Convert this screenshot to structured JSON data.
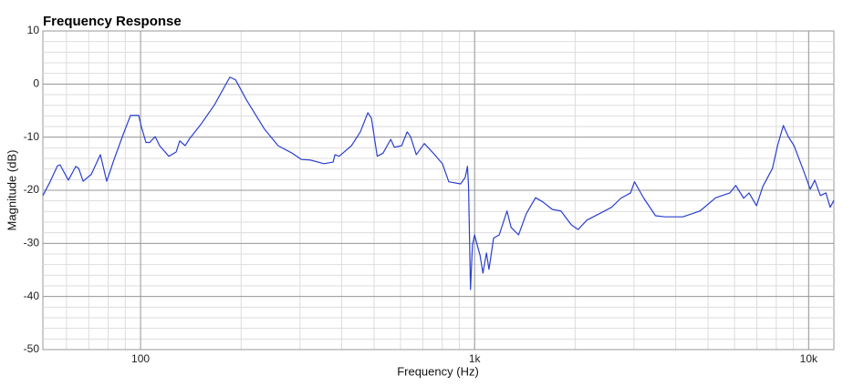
{
  "chart_data": {
    "type": "line",
    "title": "Frequency Response",
    "x_label": "Frequency (Hz)",
    "y_label": "Magnitude (dB)",
    "x_log": true,
    "grid": true,
    "minor_grid": true,
    "color": "#2b3fd0",
    "xlim": [
      51,
      11900
    ],
    "ylim": [
      -50,
      10
    ],
    "xticks": [
      100,
      {
        "value": 1000,
        "label": "1k"
      },
      {
        "value": 10000,
        "label": "10k"
      }
    ],
    "yticks": [
      10,
      0,
      -10,
      -20,
      -30,
      -40,
      -50
    ],
    "x": [
      51,
      53.6,
      56.4,
      57.4,
      60.8,
      64,
      65.3,
      67.3,
      71.2,
      75.8,
      79.2,
      83.3,
      88.7,
      93.3,
      98.7,
      100.6,
      103.8,
      106.5,
      110.6,
      114,
      121.5,
      127.8,
      131,
      136,
      140.5,
      151.5,
      166.5,
      185,
      192.5,
      207.5,
      235,
      258,
      284,
      303,
      322,
      354,
      377,
      382,
      393,
      428,
      455,
      479,
      491,
      511,
      532,
      561,
      575,
      605,
      628,
      643,
      669,
      707,
      752,
      801,
      837,
      908,
      937,
      952,
      959,
      972,
      985,
      1000,
      1019,
      1038,
      1059,
      1085,
      1104,
      1140,
      1185,
      1250,
      1286,
      1354,
      1428,
      1522,
      1601,
      1707,
      1813,
      1947,
      2040,
      2170,
      2365,
      2570,
      2740,
      2930,
      3010,
      3210,
      3480,
      3720,
      4200,
      4730,
      5270,
      5810,
      6050,
      6390,
      6630,
      6980,
      7290,
      7790,
      8070,
      8400,
      8690,
      9040,
      9600,
      10110,
      10430,
      10840,
      11260,
      11600,
      11900
    ],
    "values": [
      -21,
      -18.4,
      -15.4,
      -15.2,
      -18.1,
      -15.5,
      -15.9,
      -18.3,
      -17,
      -13.3,
      -18.3,
      -14.2,
      -9.5,
      -5.9,
      -5.9,
      -8.1,
      -11,
      -11,
      -9.9,
      -11.6,
      -13.6,
      -12.8,
      -10.7,
      -11.6,
      -10.2,
      -7.6,
      -3.9,
      1.3,
      0.8,
      -3,
      -8.5,
      -11.6,
      -13,
      -14.2,
      -14.3,
      -15,
      -14.7,
      -13.3,
      -13.6,
      -11.6,
      -9,
      -5.4,
      -6.4,
      -13.6,
      -13,
      -10.4,
      -11.9,
      -11.6,
      -9,
      -9.9,
      -13.3,
      -11.2,
      -13,
      -15,
      -18.4,
      -18.8,
      -17.6,
      -15.5,
      -19.3,
      -38.7,
      -30.4,
      -28.4,
      -30.4,
      -32.2,
      -35.6,
      -31.8,
      -34.9,
      -29,
      -28.4,
      -23.9,
      -27,
      -28.4,
      -24.4,
      -21.4,
      -22.2,
      -23.6,
      -23.9,
      -26.5,
      -27.4,
      -25.6,
      -24.4,
      -23.2,
      -21.5,
      -20.5,
      -18.4,
      -21.5,
      -24.8,
      -25,
      -25,
      -23.9,
      -21.4,
      -20.5,
      -19.1,
      -21.5,
      -20.5,
      -22.9,
      -19.3,
      -15.9,
      -11.6,
      -7.8,
      -9.9,
      -11.6,
      -15.9,
      -19.8,
      -18.1,
      -21,
      -20.5,
      -23.2,
      -21.9
    ]
  }
}
